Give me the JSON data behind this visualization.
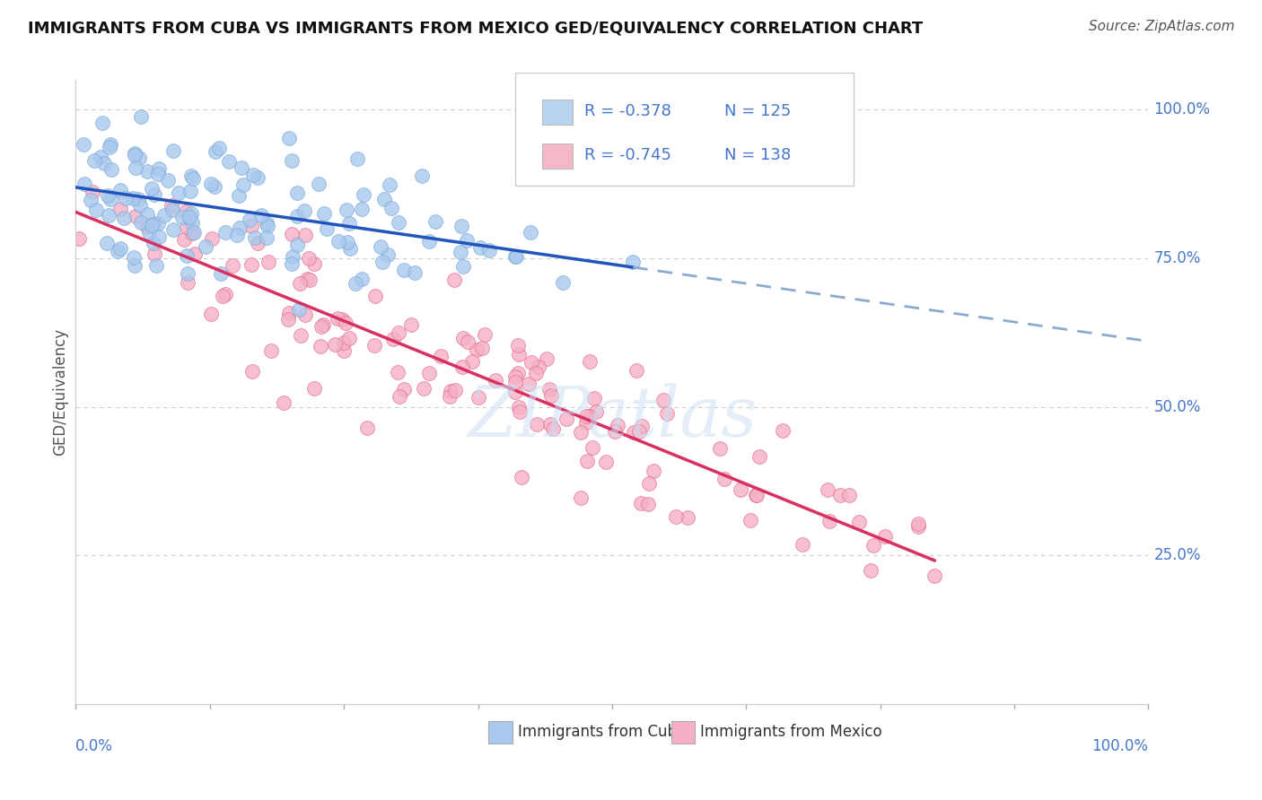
{
  "title": "IMMIGRANTS FROM CUBA VS IMMIGRANTS FROM MEXICO GED/EQUIVALENCY CORRELATION CHART",
  "source": "Source: ZipAtlas.com",
  "ylabel": "GED/Equivalency",
  "xlim": [
    0.0,
    1.0
  ],
  "ylim": [
    0.0,
    1.05
  ],
  "legend_entries": [
    {
      "label_r": "R = -0.378",
      "label_n": "N = 125",
      "color": "#b8d4f0"
    },
    {
      "label_r": "R = -0.745",
      "label_n": "N = 138",
      "color": "#f5b8c8"
    }
  ],
  "series": [
    {
      "name": "Immigrants from Cuba",
      "color": "#a8c8ee",
      "edge_color": "#7aaad8",
      "R": -0.378,
      "N": 125,
      "trend_color": "#2255bb",
      "trend_dashed_color": "#8aaace"
    },
    {
      "name": "Immigrants from Mexico",
      "color": "#f5b0c5",
      "edge_color": "#e07090",
      "R": -0.745,
      "N": 138,
      "trend_color": "#d83060",
      "trend_dashed_color": "#d83060"
    }
  ],
  "background_color": "#ffffff",
  "grid_color": "#cccccc",
  "watermark": "ZIPatlas",
  "title_color": "#111111",
  "tick_label_color": "#4477cc",
  "ytick_vals": [
    0.25,
    0.5,
    0.75,
    1.0
  ],
  "ytick_labels": [
    "25.0%",
    "50.0%",
    "75.0%",
    "100.0%"
  ]
}
